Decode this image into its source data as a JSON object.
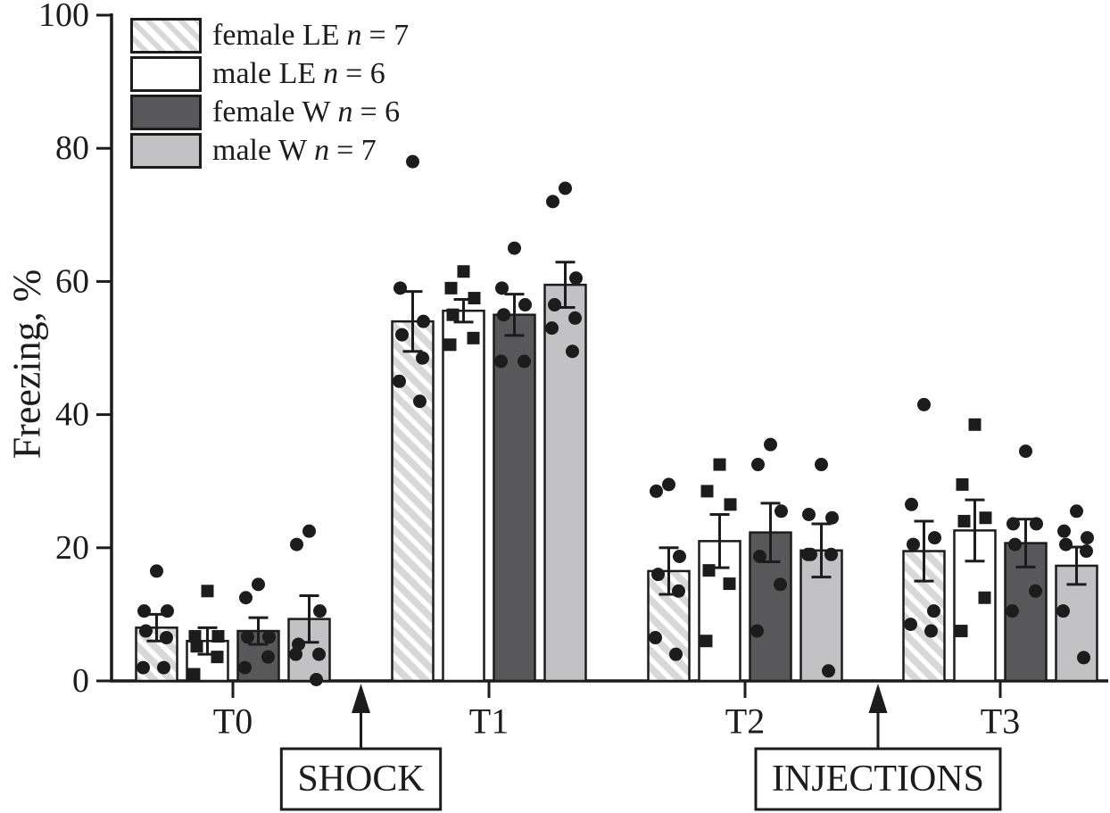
{
  "chart_data": {
    "type": "bar",
    "title": "",
    "xlabel": "",
    "ylabel": "Freezing, %",
    "ylim": [
      0,
      100
    ],
    "yticks": [
      0,
      20,
      40,
      60,
      80,
      100
    ],
    "categories": [
      "T0",
      "T1",
      "T2",
      "T3"
    ],
    "grid": false,
    "legend_position": "top-left",
    "error_bars": "SEM",
    "series": [
      {
        "name": "female LE",
        "n": 7,
        "legend": {
          "prefix": "female LE",
          "symbol": "n",
          "suffix": "= 7"
        },
        "fill": "hatch",
        "marker": "circle",
        "means": [
          8,
          54,
          16.5,
          19.5
        ],
        "sem": [
          2,
          4.5,
          3.5,
          4.5
        ],
        "points": {
          "T0": [
            16.5,
            10.5,
            10.5,
            7.5,
            6.5,
            2,
            2
          ],
          "T1": [
            78,
            59,
            54,
            52,
            48.5,
            45,
            42
          ],
          "T2": [
            29.5,
            28.5,
            18.7,
            16,
            13.5,
            6.5,
            4
          ],
          "T3": [
            41.5,
            26.5,
            21.5,
            20.5,
            10.5,
            8.5,
            7.5
          ]
        }
      },
      {
        "name": "male LE",
        "n": 6,
        "legend": {
          "prefix": "male LE",
          "symbol": "n",
          "suffix": "= 6"
        },
        "fill": "white",
        "marker": "square",
        "means": [
          6,
          55.6,
          21,
          22.6
        ],
        "sem": [
          2,
          1.7,
          4,
          4.6
        ],
        "points": {
          "T0": [
            13.5,
            6.7,
            6.7,
            5.2,
            3.6,
            1
          ],
          "T1": [
            61.5,
            59,
            57.5,
            55,
            51.5,
            50.5
          ],
          "T2": [
            32.5,
            28.5,
            26.5,
            16.6,
            14.6,
            6
          ],
          "T3": [
            38.5,
            29.5,
            24.5,
            24,
            12.5,
            7.5
          ]
        }
      },
      {
        "name": "female W",
        "n": 6,
        "legend": {
          "prefix": "female W",
          "symbol": "n",
          "suffix": "= 6"
        },
        "fill": "dark",
        "marker": "circle",
        "means": [
          7.5,
          55,
          22.3,
          20.7
        ],
        "sem": [
          2,
          3.1,
          4.4,
          3.6
        ],
        "points": {
          "T0": [
            14.5,
            12.5,
            6.6,
            6.6,
            3.6,
            2
          ],
          "T1": [
            65,
            59,
            56.5,
            55,
            48,
            48
          ],
          "T2": [
            35.5,
            32.5,
            25.5,
            18.7,
            14.5,
            7.5
          ],
          "T3": [
            34.5,
            23.6,
            23.6,
            20.5,
            13.5,
            10.5
          ]
        }
      },
      {
        "name": "male W",
        "n": 7,
        "legend": {
          "prefix": "male W",
          "symbol": "n",
          "suffix": "= 7"
        },
        "fill": "light",
        "marker": "circle",
        "means": [
          9.3,
          59.5,
          19.6,
          17.3
        ],
        "sem": [
          3.5,
          3.4,
          4,
          2.8
        ],
        "points": {
          "T0": [
            22.5,
            20.5,
            10.5,
            5.5,
            4,
            4,
            0.2
          ],
          "T1": [
            74,
            72,
            60.5,
            56.5,
            54.5,
            53,
            49.5
          ],
          "T2": [
            32.5,
            25,
            24.5,
            19,
            19,
            19,
            1.5
          ],
          "T3": [
            25.5,
            22.5,
            21.5,
            20.5,
            19.5,
            10.5,
            3.5
          ]
        }
      }
    ],
    "annotations": [
      {
        "label": "SHOCK",
        "between": [
          "T0",
          "T1"
        ]
      },
      {
        "label": "INJECTIONS",
        "between": [
          "T2",
          "T3"
        ]
      }
    ],
    "colors": {
      "ink": "#1c1c1c",
      "bar_dark_gray": "#58585a",
      "bar_light_gray": "#c2c2c4",
      "hatch_stripe": "#d8d8da",
      "background": "#ffffff"
    }
  }
}
